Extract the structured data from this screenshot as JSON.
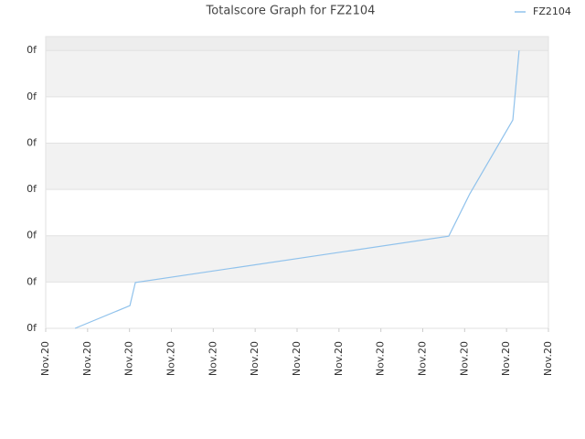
{
  "chart_data": {
    "type": "line",
    "title": "Totalscore Graph for FZ2104",
    "x": [
      0.7,
      2.01,
      2.14,
      9.62,
      10.12,
      11.15,
      11.3
    ],
    "series": [
      {
        "name": "FZ2104",
        "color": "#90c2ec",
        "values": [
          0,
          0.49,
          0.99,
          1.99,
          2.9,
          4.5,
          6.0
        ]
      }
    ],
    "xlim": [
      0,
      12
    ],
    "xticks": [
      {
        "value": 0,
        "label": "Nov.20"
      },
      {
        "value": 1,
        "label": "Nov.20"
      },
      {
        "value": 2,
        "label": "Nov.20"
      },
      {
        "value": 3,
        "label": "Nov.20"
      },
      {
        "value": 4,
        "label": "Nov.20"
      },
      {
        "value": 5,
        "label": "Nov.20"
      },
      {
        "value": 6,
        "label": "Nov.20"
      },
      {
        "value": 7,
        "label": "Nov.20"
      },
      {
        "value": 8,
        "label": "Nov.20"
      },
      {
        "value": 9,
        "label": "Nov.20"
      },
      {
        "value": 10,
        "label": "Nov.20"
      },
      {
        "value": 11,
        "label": "Nov.20"
      },
      {
        "value": 12,
        "label": "Nov.20"
      }
    ],
    "ylim": [
      0,
      6.3
    ],
    "yticks": [
      {
        "value": 0,
        "label": "0f"
      },
      {
        "value": 1,
        "label": "0f"
      },
      {
        "value": 2,
        "label": "0f"
      },
      {
        "value": 3,
        "label": "0f"
      },
      {
        "value": 4,
        "label": "0f"
      },
      {
        "value": 5,
        "label": "0f"
      },
      {
        "value": 6,
        "label": "0f"
      }
    ],
    "grid": true,
    "legend": "top-right"
  }
}
